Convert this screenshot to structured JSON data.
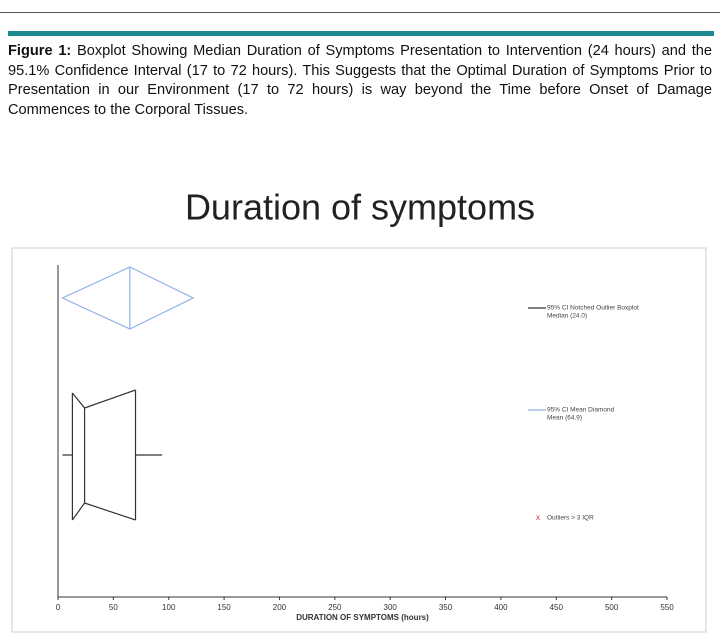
{
  "caption": {
    "label": "Figure 1:",
    "text": "Boxplot Showing Median Duration of Symptoms Presentation to Intervention (24 hours) and the 95.1% Confidence Interval (17 to 72 hours). This Suggests that the Optimal Duration of Symptoms Prior to Presentation in our Environment (17 to 72 hours) is way beyond the Time before Onset of Damage Commences to the Corporal Tissues."
  },
  "chart_data": {
    "type": "boxplot",
    "title": "Duration of symptoms",
    "xlabel": "DURATION OF SYMPTOMS (hours)",
    "xlim": [
      0,
      550
    ],
    "xticks": [
      0,
      50,
      100,
      150,
      200,
      250,
      300,
      350,
      400,
      450,
      500,
      550
    ],
    "box": {
      "whisker_low": 4,
      "q1": 13,
      "median": 24,
      "q3": 70,
      "whisker_high": 94,
      "color": "#333333"
    },
    "diamond": {
      "mean": 64.9,
      "ci_low": 4,
      "ci_high": 122,
      "color": "#8fb0e8"
    },
    "legend": [
      {
        "lines": [
          "95% CI Notched Outlier Boxplot",
          "Median (24.0)"
        ],
        "color": "#333333"
      },
      {
        "lines": [
          "95% CI Mean Diamond",
          "Mean (64.9)"
        ],
        "color": "#8fb0e8"
      },
      {
        "marker": "x",
        "lines": [
          "Outliers > 3 IQR"
        ],
        "color": "#d03030"
      }
    ]
  }
}
